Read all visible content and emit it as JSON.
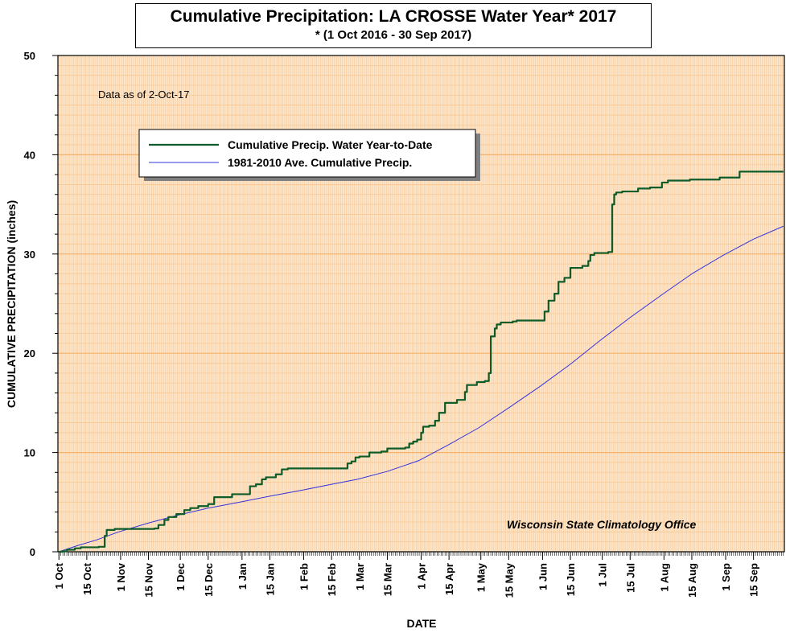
{
  "chart_data": {
    "type": "line",
    "title": "Cumulative Precipitation: LA CROSSE Water Year* 2017",
    "subtitle": "* (1 Oct 2016 - 30 Sep 2017)",
    "xlabel": "DATE",
    "ylabel": "CUMULATIVE PRECIPITATION (inches)",
    "ylim": [
      0,
      50
    ],
    "yticks": [
      "0",
      "10",
      "20",
      "30",
      "40",
      "50"
    ],
    "xlim": [
      "2016-10-01",
      "2017-09-30"
    ],
    "xticks": [
      {
        "date": "2016-10-01",
        "label": "1 Oct"
      },
      {
        "date": "2016-10-15",
        "label": "15 Oct"
      },
      {
        "date": "2016-11-01",
        "label": "1 Nov"
      },
      {
        "date": "2016-11-15",
        "label": "15 Nov"
      },
      {
        "date": "2016-12-01",
        "label": "1 Dec"
      },
      {
        "date": "2016-12-15",
        "label": "15 Dec"
      },
      {
        "date": "2017-01-01",
        "label": "1 Jan"
      },
      {
        "date": "2017-01-15",
        "label": "15 Jan"
      },
      {
        "date": "2017-02-01",
        "label": "1 Feb"
      },
      {
        "date": "2017-02-15",
        "label": "15 Feb"
      },
      {
        "date": "2017-03-01",
        "label": "1 Mar"
      },
      {
        "date": "2017-03-15",
        "label": "15 Mar"
      },
      {
        "date": "2017-04-01",
        "label": "1 Apr"
      },
      {
        "date": "2017-04-15",
        "label": "15 Apr"
      },
      {
        "date": "2017-05-01",
        "label": "1 May"
      },
      {
        "date": "2017-05-15",
        "label": "15 May"
      },
      {
        "date": "2017-06-01",
        "label": "1 Jun"
      },
      {
        "date": "2017-06-15",
        "label": "15 Jun"
      },
      {
        "date": "2017-07-01",
        "label": "1 Jul"
      },
      {
        "date": "2017-07-15",
        "label": "15 Jul"
      },
      {
        "date": "2017-08-01",
        "label": "1 Aug"
      },
      {
        "date": "2017-08-15",
        "label": "15 Aug"
      },
      {
        "date": "2017-09-01",
        "label": "1 Sep"
      },
      {
        "date": "2017-09-15",
        "label": "15 Sep"
      }
    ],
    "annotations": {
      "data_as_of": "Data as of 2-Oct-17",
      "credit": "Wisconsin State Climatology Office"
    },
    "legend": {
      "position": "upper-left"
    },
    "grid": true,
    "background_color": "#FDE5C9",
    "grid_colors": {
      "major": "#F5B26A",
      "minor": "#F8C896"
    },
    "series": [
      {
        "name": "Cumulative Precip.  Water Year-to-Date",
        "color": "#0E5C2A",
        "step": true,
        "points": [
          [
            "2016-10-01",
            0.0
          ],
          [
            "2016-10-03",
            0.05
          ],
          [
            "2016-10-05",
            0.2
          ],
          [
            "2016-10-09",
            0.35
          ],
          [
            "2016-10-12",
            0.45
          ],
          [
            "2016-10-21",
            0.5
          ],
          [
            "2016-10-24",
            1.6
          ],
          [
            "2016-10-25",
            2.2
          ],
          [
            "2016-10-29",
            2.3
          ],
          [
            "2016-11-18",
            2.35
          ],
          [
            "2016-11-20",
            2.7
          ],
          [
            "2016-11-23",
            3.2
          ],
          [
            "2016-11-25",
            3.5
          ],
          [
            "2016-11-29",
            3.8
          ],
          [
            "2016-12-03",
            4.2
          ],
          [
            "2016-12-06",
            4.4
          ],
          [
            "2016-12-10",
            4.6
          ],
          [
            "2016-12-15",
            4.8
          ],
          [
            "2016-12-18",
            5.5
          ],
          [
            "2016-12-27",
            5.8
          ],
          [
            "2017-01-05",
            6.6
          ],
          [
            "2017-01-08",
            6.8
          ],
          [
            "2017-01-11",
            7.3
          ],
          [
            "2017-01-13",
            7.5
          ],
          [
            "2017-01-18",
            7.8
          ],
          [
            "2017-01-21",
            8.3
          ],
          [
            "2017-01-24",
            8.4
          ],
          [
            "2017-02-23",
            8.9
          ],
          [
            "2017-02-25",
            9.1
          ],
          [
            "2017-02-27",
            9.5
          ],
          [
            "2017-03-01",
            9.6
          ],
          [
            "2017-03-06",
            10.0
          ],
          [
            "2017-03-12",
            10.1
          ],
          [
            "2017-03-15",
            10.4
          ],
          [
            "2017-03-24",
            10.5
          ],
          [
            "2017-03-26",
            10.9
          ],
          [
            "2017-03-28",
            11.1
          ],
          [
            "2017-03-30",
            11.3
          ],
          [
            "2017-04-01",
            12.0
          ],
          [
            "2017-04-02",
            12.6
          ],
          [
            "2017-04-05",
            12.7
          ],
          [
            "2017-04-08",
            13.2
          ],
          [
            "2017-04-10",
            14.0
          ],
          [
            "2017-04-13",
            15.0
          ],
          [
            "2017-04-19",
            15.3
          ],
          [
            "2017-04-23",
            16.1
          ],
          [
            "2017-04-24",
            16.8
          ],
          [
            "2017-04-29",
            17.1
          ],
          [
            "2017-05-03",
            17.2
          ],
          [
            "2017-05-05",
            18.0
          ],
          [
            "2017-05-06",
            21.7
          ],
          [
            "2017-05-08",
            22.5
          ],
          [
            "2017-05-09",
            22.9
          ],
          [
            "2017-05-11",
            23.1
          ],
          [
            "2017-05-17",
            23.2
          ],
          [
            "2017-05-19",
            23.3
          ],
          [
            "2017-05-30",
            23.3
          ],
          [
            "2017-06-02",
            24.2
          ],
          [
            "2017-06-04",
            25.3
          ],
          [
            "2017-06-07",
            26.0
          ],
          [
            "2017-06-09",
            27.2
          ],
          [
            "2017-06-12",
            27.6
          ],
          [
            "2017-06-15",
            28.6
          ],
          [
            "2017-06-21",
            28.8
          ],
          [
            "2017-06-24",
            29.3
          ],
          [
            "2017-06-25",
            29.9
          ],
          [
            "2017-06-27",
            30.1
          ],
          [
            "2017-07-04",
            30.2
          ],
          [
            "2017-07-06",
            35.0
          ],
          [
            "2017-07-07",
            36.0
          ],
          [
            "2017-07-08",
            36.2
          ],
          [
            "2017-07-11",
            36.3
          ],
          [
            "2017-07-19",
            36.6
          ],
          [
            "2017-07-25",
            36.7
          ],
          [
            "2017-07-31",
            37.2
          ],
          [
            "2017-08-03",
            37.4
          ],
          [
            "2017-08-14",
            37.5
          ],
          [
            "2017-08-29",
            37.7
          ],
          [
            "2017-09-08",
            38.3
          ],
          [
            "2017-09-30",
            38.3
          ]
        ]
      },
      {
        "name": "1981-2010 Ave. Cumulative Precip.",
        "color": "#3333DD",
        "step": false,
        "points": [
          [
            "2016-10-01",
            0.0
          ],
          [
            "2016-10-10",
            0.6
          ],
          [
            "2016-10-20",
            1.2
          ],
          [
            "2016-10-31",
            2.0
          ],
          [
            "2016-11-15",
            2.9
          ],
          [
            "2016-11-30",
            3.7
          ],
          [
            "2016-12-15",
            4.4
          ],
          [
            "2016-12-31",
            5.0
          ],
          [
            "2017-01-15",
            5.6
          ],
          [
            "2017-01-31",
            6.2
          ],
          [
            "2017-02-15",
            6.8
          ],
          [
            "2017-02-28",
            7.3
          ],
          [
            "2017-03-15",
            8.1
          ],
          [
            "2017-03-31",
            9.2
          ],
          [
            "2017-04-15",
            10.8
          ],
          [
            "2017-04-30",
            12.5
          ],
          [
            "2017-05-15",
            14.5
          ],
          [
            "2017-05-31",
            16.7
          ],
          [
            "2017-06-15",
            18.9
          ],
          [
            "2017-06-30",
            21.3
          ],
          [
            "2017-07-15",
            23.6
          ],
          [
            "2017-07-31",
            25.9
          ],
          [
            "2017-08-15",
            28.0
          ],
          [
            "2017-08-31",
            29.9
          ],
          [
            "2017-09-15",
            31.5
          ],
          [
            "2017-09-30",
            32.8
          ]
        ]
      }
    ]
  }
}
